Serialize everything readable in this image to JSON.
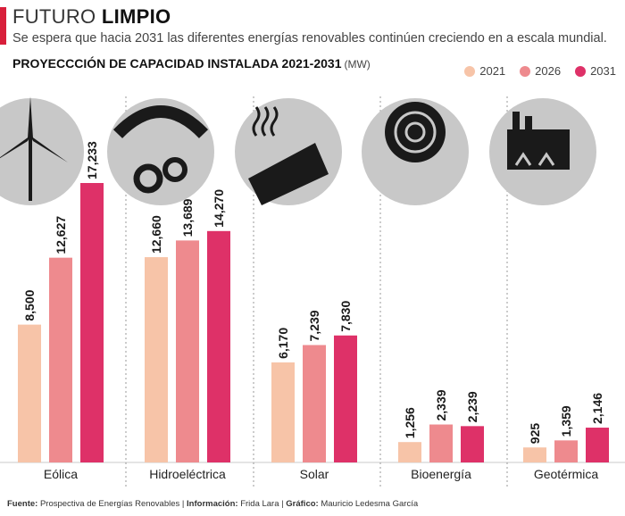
{
  "header": {
    "title_light": "FUTURO",
    "title_bold": "LIMPIO",
    "subtitle": "Se espera que hacia 2031 las diferentes energías renovables continúen creciendo en a escala mundial."
  },
  "chart_data": {
    "type": "bar",
    "title": "PROYECCCIÓN DE CAPACIDAD INSTALADA 2021-2031",
    "unit": "(MW)",
    "categories": [
      "Eólica",
      "Hidroeléctrica",
      "Solar",
      "Bioenergía",
      "Geotérmica"
    ],
    "series": [
      {
        "name": "2021",
        "color": "#f7c4a8",
        "values": [
          8500,
          12660,
          6170,
          1256,
          925
        ],
        "labels": [
          "8,500",
          "12,660",
          "6,170",
          "1,256",
          "925"
        ]
      },
      {
        "name": "2026",
        "color": "#ee8a8e",
        "values": [
          12627,
          13689,
          7239,
          2339,
          1359
        ],
        "labels": [
          "12,627",
          "13,689",
          "7,239",
          "2,339",
          "1,359"
        ]
      },
      {
        "name": "2031",
        "color": "#de3168",
        "values": [
          17233,
          14270,
          7830,
          2239,
          2146
        ],
        "labels": [
          "17,233",
          "14,270",
          "7,830",
          "2,239",
          "2,146"
        ]
      }
    ],
    "legend_position": "top-right",
    "icons": [
      "wind-turbine-icon",
      "hydro-turbine-icon",
      "solar-heat-icon",
      "bioenergy-shell-icon",
      "geothermal-plant-icon"
    ]
  },
  "footer": {
    "source_label": "Fuente:",
    "source_text": "Prospectiva de Energías Renovables",
    "info_label": "Información:",
    "info_text": "Frida Lara",
    "graphic_label": "Gráfico:",
    "graphic_text": "Mauricio Ledesma García"
  }
}
